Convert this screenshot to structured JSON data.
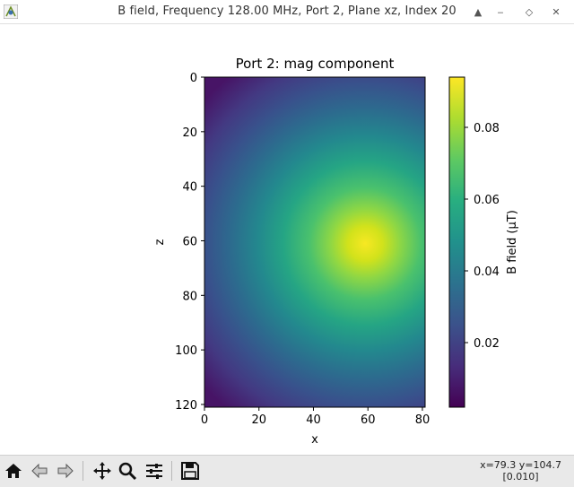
{
  "window": {
    "title": "B field, Frequency 128.00 MHz, Port 2, Plane xz, Index 20",
    "buttons": [
      "up-arrow",
      "minimize",
      "restore",
      "close"
    ]
  },
  "toolbar": {
    "buttons": [
      "home-icon",
      "back-icon",
      "forward-icon",
      "pan-icon",
      "zoom-icon",
      "configure-subplots-icon",
      "save-icon"
    ],
    "coords_line1": "x=79.3 y=104.7",
    "coords_line2": "[0.010]"
  },
  "chart_data": {
    "type": "heatmap",
    "title": "Port 2: mag component",
    "xlabel": "x",
    "ylabel": "z",
    "xlim": [
      0,
      81
    ],
    "ylim": [
      121,
      0
    ],
    "xticks": [
      "0",
      "20",
      "40",
      "60",
      "80"
    ],
    "yticks": [
      "0",
      "20",
      "40",
      "60",
      "80",
      "100",
      "120"
    ],
    "colormap": "viridis",
    "peak": {
      "x": 59,
      "z": 61,
      "value": 0.093
    },
    "min_value": 0.002,
    "colorbar": {
      "label": "B field (μT)",
      "ticks": [
        "0.02",
        "0.04",
        "0.06",
        "0.08"
      ],
      "range": [
        0.002,
        0.094
      ]
    }
  }
}
